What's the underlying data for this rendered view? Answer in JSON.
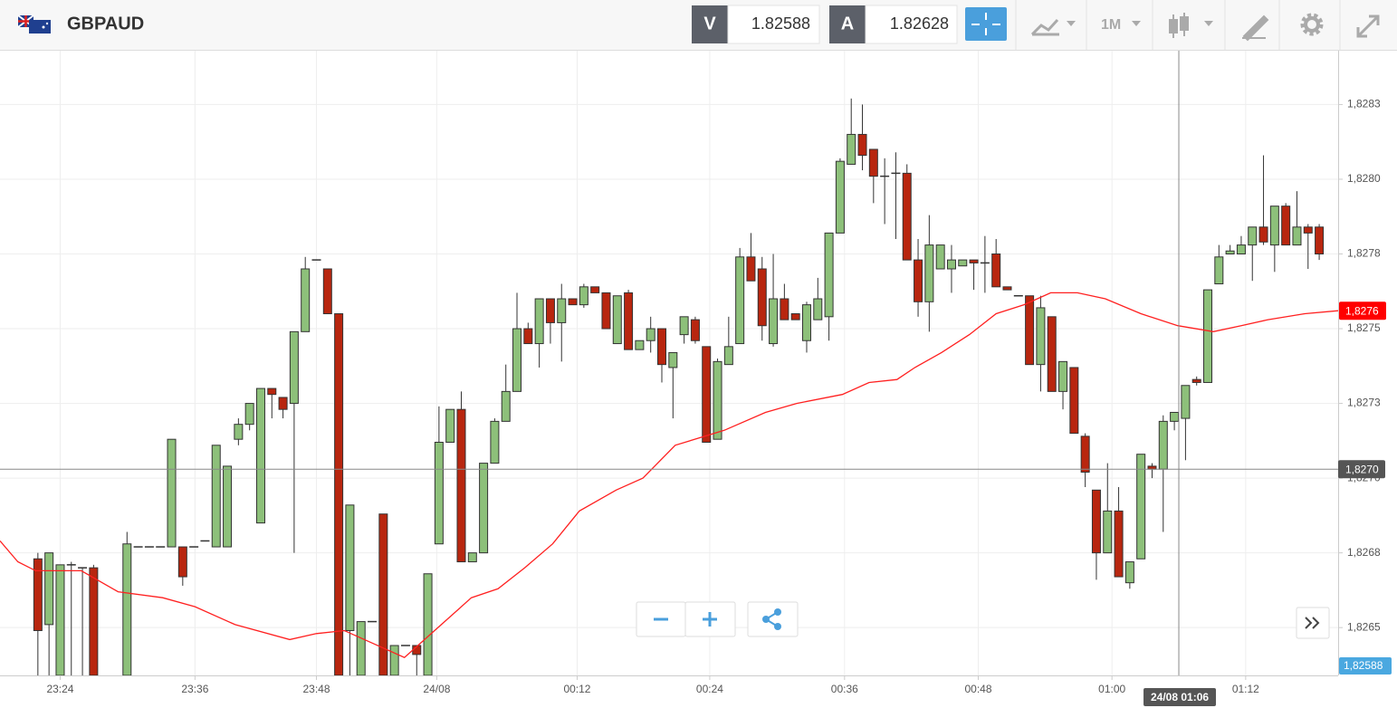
{
  "header": {
    "symbol": "GBPAUD",
    "bid_label": "V",
    "bid": 1.82588,
    "ask_label": "A",
    "ask": 1.82628,
    "timeframe": "1M"
  },
  "chart_data": {
    "type": "candlestick",
    "open": [
      1.82673,
      1.82651,
      1.82634,
      1.82671,
      1.8267,
      1.8267,
      null,
      null,
      1.82634,
      1.82677,
      1.82677,
      1.82677,
      1.82677,
      1.82677,
      1.82677,
      1.82679,
      1.82677,
      1.82677,
      1.82713,
      1.82718,
      1.82685,
      1.8273,
      1.82727,
      1.82725,
      1.82749,
      1.82773,
      1.8277,
      1.82755,
      1.82649,
      1.82634,
      1.82652,
      1.82688,
      1.82634,
      1.82644,
      1.82644,
      1.82634,
      1.82678,
      1.82712,
      1.82723,
      1.82672,
      1.82675,
      1.82705,
      1.82719,
      1.82729,
      1.8275,
      1.82745,
      1.8276,
      1.82752,
      1.8276,
      1.82758,
      1.82764,
      1.82762,
      1.82745,
      1.82762,
      1.82743,
      1.82746,
      1.8275,
      1.82737,
      1.82748,
      1.82753,
      1.82744,
      1.82713,
      1.82738,
      1.82745,
      1.82774,
      1.8277,
      1.82745,
      1.8276,
      1.82755,
      1.82746,
      1.82753,
      1.82754,
      1.82782,
      1.82805,
      1.82815,
      1.8281,
      1.82801,
      1.82802,
      1.82802,
      1.82773,
      1.82759,
      1.8277,
      1.8277,
      1.82771,
      1.82773,
      1.82772,
      1.82775,
      1.82764,
      1.82761,
      1.82761,
      1.82738,
      1.82754,
      1.82729,
      1.82737,
      1.82714,
      1.82696,
      1.82675,
      1.82689,
      1.82665,
      1.82673,
      1.82704,
      1.82703,
      1.82719,
      1.8272,
      1.82733,
      1.82732,
      1.82765,
      1.82775,
      1.82775,
      1.82778,
      1.82784,
      1.82778,
      1.82791,
      1.82778,
      1.82784,
      1.82784
    ],
    "high": [
      1.82675,
      1.82675,
      1.82671,
      1.82672,
      1.8267,
      1.82671,
      null,
      null,
      1.82682,
      1.82677,
      1.82677,
      1.82677,
      1.82713,
      1.82677,
      1.82677,
      1.82679,
      1.82711,
      1.82704,
      1.8272,
      1.82725,
      1.8273,
      1.8273,
      1.82727,
      1.82749,
      1.82774,
      1.82773,
      1.8277,
      1.82755,
      1.82691,
      1.82652,
      1.82652,
      1.82688,
      1.82644,
      1.82644,
      1.82644,
      1.82668,
      1.82724,
      1.82723,
      1.82729,
      1.82675,
      1.82705,
      1.8272,
      1.82738,
      1.82762,
      1.82752,
      1.8276,
      1.8276,
      1.82765,
      1.8276,
      1.82765,
      1.82764,
      1.82762,
      1.82761,
      1.82763,
      1.82746,
      1.82754,
      1.8275,
      1.82742,
      1.82754,
      1.82754,
      1.82744,
      1.8274,
      1.82754,
      1.82777,
      1.82782,
      1.82774,
      1.82775,
      1.82765,
      1.82755,
      1.82759,
      1.82767,
      1.82782,
      1.82807,
      1.82827,
      1.82825,
      1.8281,
      1.82807,
      1.82809,
      1.82805,
      1.8278,
      1.82788,
      1.82778,
      1.82778,
      1.82773,
      1.82773,
      1.82781,
      1.8278,
      1.82764,
      1.82761,
      1.82761,
      1.82761,
      1.82754,
      1.82739,
      1.82737,
      1.82715,
      1.82696,
      1.82705,
      1.82697,
      1.82672,
      1.82708,
      1.82705,
      1.82721,
      1.82722,
      1.82731,
      1.82734,
      1.82763,
      1.82778,
      1.82778,
      1.82781,
      1.82784,
      1.82808,
      1.82791,
      1.82792,
      1.82796,
      1.82785,
      1.82785
    ],
    "low": [
      1.82634,
      1.82634,
      1.82634,
      1.82634,
      1.82634,
      1.82634,
      null,
      null,
      1.82634,
      1.82677,
      1.82677,
      1.82677,
      1.82677,
      1.82664,
      1.82677,
      1.82679,
      1.82677,
      1.82677,
      1.82711,
      1.82716,
      1.82685,
      1.8272,
      1.8272,
      1.82675,
      1.82749,
      1.82773,
      1.82755,
      1.82634,
      1.82634,
      1.82634,
      1.82652,
      1.82634,
      1.82634,
      1.82644,
      1.82634,
      1.82634,
      1.82678,
      1.82712,
      1.82672,
      1.82672,
      1.82675,
      1.82705,
      1.82719,
      1.82729,
      1.82745,
      1.82737,
      1.82745,
      1.82739,
      1.82758,
      1.82757,
      1.82762,
      1.8275,
      1.82745,
      1.82743,
      1.82743,
      1.82742,
      1.82732,
      1.8272,
      1.82745,
      1.82745,
      1.82712,
      1.82713,
      1.82738,
      1.82745,
      1.82766,
      1.82746,
      1.82744,
      1.82753,
      1.82753,
      1.82742,
      1.82753,
      1.82746,
      1.82782,
      1.82805,
      1.82803,
      1.82792,
      1.82785,
      1.8278,
      1.82773,
      1.82754,
      1.82749,
      1.8277,
      1.82762,
      1.82771,
      1.82763,
      1.82762,
      1.82764,
      1.82763,
      1.82761,
      1.82738,
      1.82729,
      1.82729,
      1.82723,
      1.82715,
      1.82697,
      1.82666,
      1.82675,
      1.82667,
      1.82663,
      1.82673,
      1.827,
      1.82682,
      1.82716,
      1.82706,
      1.82731,
      1.82732,
      1.82765,
      1.82775,
      1.82775,
      1.82766,
      1.82778,
      1.82769,
      1.82778,
      1.82778,
      1.8277,
      1.82773
    ],
    "close": [
      1.82649,
      1.82675,
      1.82671,
      1.82671,
      1.8267,
      1.82634,
      null,
      null,
      1.82678,
      1.82677,
      1.82677,
      1.82677,
      1.82713,
      1.82667,
      1.82677,
      1.82679,
      1.82711,
      1.82704,
      1.82718,
      1.82725,
      1.8273,
      1.82728,
      1.82723,
      1.82749,
      1.8277,
      1.82773,
      1.82755,
      1.82634,
      1.82691,
      1.82652,
      1.82652,
      1.82634,
      1.82644,
      1.82644,
      1.82641,
      1.82668,
      1.82712,
      1.82723,
      1.82672,
      1.82675,
      1.82705,
      1.82719,
      1.82729,
      1.8275,
      1.82745,
      1.8276,
      1.82752,
      1.8276,
      1.82758,
      1.82764,
      1.82762,
      1.8275,
      1.82761,
      1.82743,
      1.82746,
      1.8275,
      1.82738,
      1.82742,
      1.82754,
      1.82746,
      1.82712,
      1.82739,
      1.82744,
      1.82774,
      1.82766,
      1.82751,
      1.8276,
      1.82753,
      1.82753,
      1.82758,
      1.8276,
      1.82782,
      1.82806,
      1.82815,
      1.82808,
      1.82801,
      1.82801,
      1.82802,
      1.82773,
      1.82759,
      1.82778,
      1.82778,
      1.82773,
      1.82773,
      1.82772,
      1.82772,
      1.82764,
      1.82763,
      1.82761,
      1.82738,
      1.82757,
      1.82729,
      1.82739,
      1.82715,
      1.82702,
      1.82675,
      1.82689,
      1.82667,
      1.82672,
      1.82708,
      1.82703,
      1.82719,
      1.82722,
      1.82731,
      1.82732,
      1.82763,
      1.82774,
      1.82776,
      1.82778,
      1.82784,
      1.82779,
      1.82791,
      1.82778,
      1.82784,
      1.82782,
      1.82775
    ],
    "up_color": "#8dc07a",
    "down_color": "#b8260f",
    "ma": {
      "color": "#ff2020",
      "x": [
        -3.4,
        -1.8,
        -0.2,
        3.9,
        7.2,
        11.2,
        14.1,
        17.7,
        22.6,
        25.0,
        27.5,
        29.9,
        32.9,
        35.6,
        38.9,
        41.3,
        43.7,
        46.2,
        48.6,
        51.9,
        54.3,
        57.2,
        61.6,
        65.3,
        68.1,
        72.2,
        74.6,
        77.1,
        78.7,
        81.1,
        83.6,
        86.0,
        88.5,
        90.9,
        93.3,
        95.8,
        99.0,
        102.3,
        105.5,
        108.0,
        110.4,
        113.7,
        116.7
      ],
      "values": [
        1.82679,
        1.82672,
        1.82669,
        1.82669,
        1.82662,
        1.8266,
        1.82657,
        1.82651,
        1.82646,
        1.82648,
        1.82649,
        1.82645,
        1.8264,
        1.82649,
        1.8266,
        1.82663,
        1.8267,
        1.82678,
        1.82689,
        1.82696,
        1.827,
        1.82711,
        1.82716,
        1.82722,
        1.82725,
        1.82728,
        1.82732,
        1.82733,
        1.82737,
        1.82742,
        1.82748,
        1.82755,
        1.82758,
        1.82762,
        1.82762,
        1.8276,
        1.82755,
        1.82751,
        1.82749,
        1.82751,
        1.82753,
        1.82755,
        1.82756
      ]
    },
    "xlim": [
      -3.4,
      116.7
    ],
    "xticks": [
      {
        "value": 2.0,
        "label": "23:24"
      },
      {
        "value": 14.1,
        "label": "23:36"
      },
      {
        "value": 25.0,
        "label": "23:48"
      },
      {
        "value": 35.8,
        "label": "24/08"
      },
      {
        "value": 48.4,
        "label": "00:12"
      },
      {
        "value": 60.3,
        "label": "00:24"
      },
      {
        "value": 72.4,
        "label": "00:36"
      },
      {
        "value": 84.4,
        "label": "00:48"
      },
      {
        "value": 96.4,
        "label": "01:00"
      },
      {
        "value": 108.4,
        "label": "01:12"
      }
    ],
    "ylim": [
      1.82634,
      1.82843
    ],
    "yticks": [
      {
        "value": 1.82825,
        "label": "1,8283"
      },
      {
        "value": 1.828,
        "label": "1,8280"
      },
      {
        "value": 1.82775,
        "label": "1,8278"
      },
      {
        "value": 1.8275,
        "label": "1,8275"
      },
      {
        "value": 1.82725,
        "label": "1,8273"
      },
      {
        "value": 1.827,
        "label": "1,8270"
      },
      {
        "value": 1.82675,
        "label": "1,8268"
      },
      {
        "value": 1.8265,
        "label": "1,8265"
      }
    ],
    "grid": true,
    "crosshair": {
      "x": {
        "value": 102.4,
        "label": "24/08 01:06"
      },
      "y": {
        "value": 1.82703,
        "label": "1,8270"
      }
    },
    "last_tag": {
      "value": 1.82756,
      "label": "1,8276",
      "color": "#ff0000"
    },
    "bid_tag": "1,82588"
  }
}
